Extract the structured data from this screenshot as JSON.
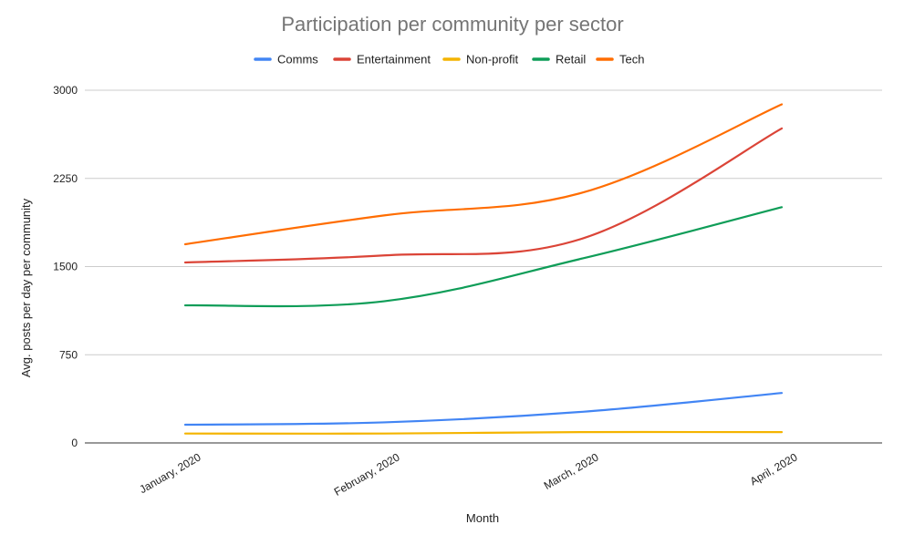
{
  "chart_data": {
    "type": "line",
    "title": "Participation per community per sector",
    "xlabel": "Month",
    "ylabel": "Avg. posts per day per community",
    "categories": [
      "January, 2020",
      "February, 2020",
      "March, 2020",
      "April, 2020"
    ],
    "ylim": [
      0,
      3000
    ],
    "yticks": [
      0,
      750,
      1500,
      2250,
      3000
    ],
    "grid": true,
    "legend_position": "top",
    "smooth": true,
    "series": [
      {
        "name": "Comms",
        "color": "#4285f4",
        "values": [
          155,
          175,
          265,
          425
        ]
      },
      {
        "name": "Entertainment",
        "color": "#db4437",
        "values": [
          1535,
          1595,
          1740,
          2675
        ]
      },
      {
        "name": "Non-profit",
        "color": "#f4b400",
        "values": [
          80,
          80,
          92,
          92
        ]
      },
      {
        "name": "Retail",
        "color": "#0f9d58",
        "values": [
          1170,
          1205,
          1570,
          2005
        ]
      },
      {
        "name": "Tech",
        "color": "#ff6d01",
        "values": [
          1690,
          1935,
          2130,
          2880
        ]
      }
    ]
  }
}
